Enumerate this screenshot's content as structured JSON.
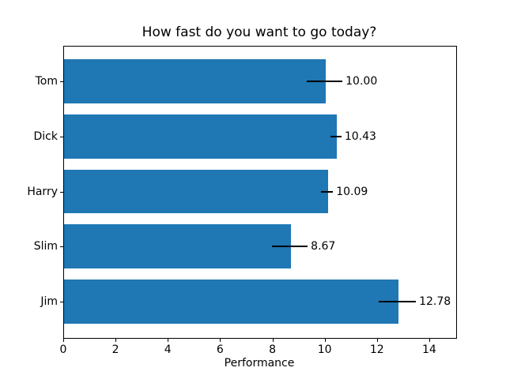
{
  "chart_data": {
    "type": "bar",
    "orientation": "horizontal",
    "title": "How fast do you want to go today?",
    "categories": [
      "Tom",
      "Dick",
      "Harry",
      "Slim",
      "Jim"
    ],
    "values": [
      10.0,
      10.43,
      10.09,
      8.67,
      12.78
    ],
    "errors": [
      0.68,
      0.21,
      0.23,
      0.68,
      0.71
    ],
    "bar_labels": [
      "10.00",
      "10.43",
      "10.09",
      "8.67",
      "12.78"
    ],
    "xlabel": "Performance",
    "ylabel": "",
    "xlim": [
      0,
      15
    ],
    "x_ticks": [
      0,
      2,
      4,
      6,
      8,
      10,
      12,
      14
    ],
    "grid": false,
    "legend_position": "none",
    "bar_color": "#1f77b4",
    "error_bar_color": "#000000",
    "text_color": "#000000"
  }
}
